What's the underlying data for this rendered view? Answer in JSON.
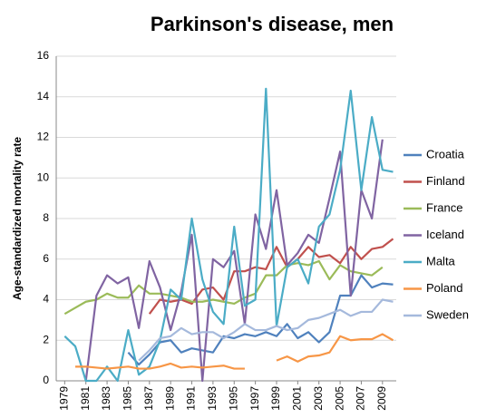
{
  "chart_data": {
    "type": "line",
    "title": "Parkinson's disease, men",
    "y_label": "Age-standardized mortality rate",
    "x": [
      1979,
      1980,
      1981,
      1982,
      1983,
      1984,
      1985,
      1986,
      1987,
      1988,
      1989,
      1990,
      1991,
      1992,
      1993,
      1994,
      1995,
      1996,
      1997,
      1998,
      1999,
      2000,
      2001,
      2002,
      2003,
      2004,
      2005,
      2006,
      2007,
      2008,
      2009,
      2010
    ],
    "xlim": [
      1978.2,
      2010.3
    ],
    "xticks": [
      1979,
      1981,
      1983,
      1985,
      1987,
      1989,
      1991,
      1993,
      1995,
      1997,
      1999,
      2001,
      2003,
      2005,
      2007,
      2009
    ],
    "ylim": [
      0,
      16
    ],
    "yticks": [
      0,
      2,
      4,
      6,
      8,
      10,
      12,
      14,
      16
    ],
    "grid": true,
    "legend": "right",
    "series": [
      {
        "name": "Croatia",
        "color": "#4f81bd",
        "values": [
          null,
          null,
          null,
          null,
          null,
          null,
          1.4,
          0.8,
          1.3,
          1.9,
          2.0,
          1.4,
          1.6,
          1.5,
          1.4,
          2.2,
          2.1,
          2.3,
          2.2,
          2.4,
          2.2,
          2.8,
          2.1,
          2.4,
          1.9,
          2.4,
          4.2,
          4.2,
          5.2,
          4.6,
          4.8,
          4.75
        ]
      },
      {
        "name": "Finland",
        "color": "#c0504d",
        "values": [
          null,
          null,
          null,
          null,
          null,
          null,
          null,
          null,
          3.3,
          4.0,
          3.9,
          4.0,
          3.8,
          4.5,
          4.6,
          4.0,
          5.4,
          5.4,
          5.6,
          5.5,
          6.6,
          5.6,
          6.0,
          6.6,
          6.1,
          6.2,
          5.8,
          6.6,
          6.0,
          6.5,
          6.6,
          7.0
        ]
      },
      {
        "name": "France",
        "color": "#9bbb59",
        "values": [
          3.3,
          3.6,
          3.9,
          4.0,
          4.3,
          4.1,
          4.1,
          4.7,
          4.3,
          4.3,
          4.2,
          4.1,
          3.9,
          3.9,
          4.0,
          3.9,
          3.8,
          4.1,
          4.3,
          5.2,
          5.2,
          5.7,
          5.8,
          5.7,
          5.9,
          5.0,
          5.7,
          5.4,
          5.3,
          5.2,
          5.6,
          null
        ]
      },
      {
        "name": "Iceland",
        "color": "#8064a2",
        "values": [
          null,
          null,
          0,
          4.2,
          5.2,
          4.8,
          5.1,
          2.6,
          5.9,
          4.6,
          2.5,
          4.4,
          7.2,
          0,
          6.0,
          5.6,
          6.4,
          2.8,
          8.2,
          6.5,
          9.4,
          5.7,
          6.3,
          7.2,
          6.8,
          9.0,
          11.3,
          4.2,
          9.4,
          8.0,
          11.9,
          null
        ]
      },
      {
        "name": "Malta",
        "color": "#4bacc6",
        "values": [
          2.2,
          1.7,
          0,
          0,
          0.7,
          0,
          2.5,
          0.3,
          0.7,
          2.0,
          4.5,
          4.0,
          8.0,
          5.0,
          3.4,
          2.8,
          7.6,
          3.7,
          4.0,
          14.4,
          2.7,
          5.6,
          6.0,
          4.8,
          7.6,
          8.2,
          10.4,
          14.3,
          9.4,
          13.0,
          10.4,
          10.3
        ]
      },
      {
        "name": "Poland",
        "color": "#f79646",
        "values": [
          null,
          0.7,
          0.7,
          0.65,
          0.6,
          0.65,
          0.7,
          0.6,
          0.6,
          0.7,
          0.85,
          0.65,
          0.7,
          0.65,
          0.7,
          0.75,
          0.6,
          0.6,
          null,
          null,
          1.0,
          1.2,
          0.95,
          1.2,
          1.25,
          1.4,
          2.2,
          2.0,
          2.05,
          2.05,
          2.3,
          2.0
        ]
      },
      {
        "name": "Sweden",
        "color": "#a5b9dc",
        "values": [
          null,
          null,
          null,
          null,
          null,
          null,
          null,
          1.0,
          1.5,
          2.1,
          2.2,
          2.6,
          2.3,
          2.4,
          2.4,
          2.1,
          2.4,
          2.8,
          2.5,
          2.5,
          2.7,
          2.5,
          2.6,
          3.0,
          3.1,
          3.3,
          3.5,
          3.2,
          3.4,
          3.4,
          4.0,
          3.9
        ]
      }
    ]
  }
}
